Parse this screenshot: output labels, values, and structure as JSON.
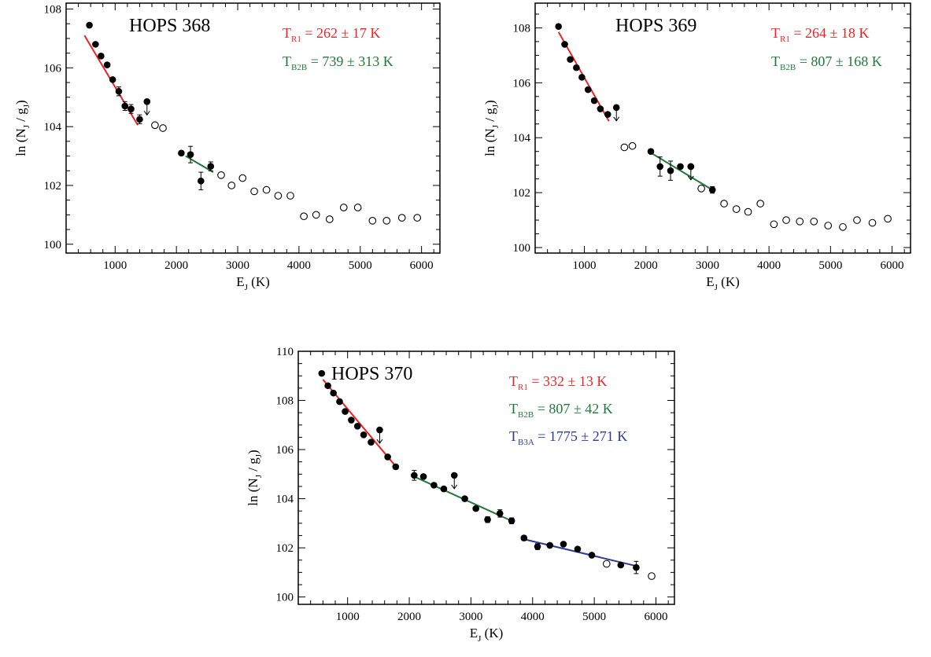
{
  "chart_data": [
    {
      "type": "scatter",
      "title": "HOPS 368",
      "xlabel": "E",
      "xlabel_sub": "J",
      "xlabel_unit": " (K)",
      "ylabel": "ln (N",
      "ylabel_sub1": "J",
      "ylabel_mid": " / g",
      "ylabel_sub2": "J",
      "ylabel_end": ")",
      "xlim": [
        200,
        6300
      ],
      "ylim": [
        99.7,
        108.2
      ],
      "xticks": [
        "1000",
        "2000",
        "3000",
        "4000",
        "5000",
        "6000"
      ],
      "yticks": [
        "100",
        "102",
        "104",
        "106",
        "108"
      ],
      "detections": [
        {
          "x": 580,
          "y": 107.45
        },
        {
          "x": 680,
          "y": 106.8
        },
        {
          "x": 770,
          "y": 106.4
        },
        {
          "x": 870,
          "y": 106.1
        },
        {
          "x": 960,
          "y": 105.6
        },
        {
          "x": 1060,
          "y": 105.2,
          "err": 0.15
        },
        {
          "x": 1160,
          "y": 104.7,
          "err": 0.15
        },
        {
          "x": 1260,
          "y": 104.6,
          "err": 0.15
        },
        {
          "x": 1400,
          "y": 104.25,
          "err": 0.15
        },
        {
          "x": 2080,
          "y": 103.1
        },
        {
          "x": 2230,
          "y": 103.05,
          "err": 0.28
        },
        {
          "x": 2400,
          "y": 102.15,
          "err": 0.3
        },
        {
          "x": 2560,
          "y": 102.65,
          "err": 0.15
        }
      ],
      "upper_limits": [
        {
          "x": 1520,
          "y": 104.85
        }
      ],
      "non_detections": [
        {
          "x": 1650,
          "y": 104.05
        },
        {
          "x": 1780,
          "y": 103.95
        },
        {
          "x": 2730,
          "y": 102.35
        },
        {
          "x": 2900,
          "y": 102.0
        },
        {
          "x": 3080,
          "y": 102.25
        },
        {
          "x": 3270,
          "y": 101.8
        },
        {
          "x": 3470,
          "y": 101.85
        },
        {
          "x": 3660,
          "y": 101.65
        },
        {
          "x": 3860,
          "y": 101.65
        },
        {
          "x": 4080,
          "y": 100.95
        },
        {
          "x": 4280,
          "y": 101.0
        },
        {
          "x": 4500,
          "y": 100.85
        },
        {
          "x": 4730,
          "y": 101.25
        },
        {
          "x": 4960,
          "y": 101.25
        },
        {
          "x": 5200,
          "y": 100.8
        },
        {
          "x": 5430,
          "y": 100.8
        },
        {
          "x": 5680,
          "y": 100.9
        },
        {
          "x": 5930,
          "y": 100.9
        }
      ],
      "fits": [
        {
          "color": "#ee2222",
          "x1": 500,
          "y1": 107.1,
          "x2": 1370,
          "y2": 104.05
        },
        {
          "color": "#1f7a3a",
          "x1": 2150,
          "y1": 103.0,
          "x2": 2600,
          "y2": 102.45
        }
      ],
      "annotations": [
        {
          "label": "T",
          "sub": "R1",
          "value": " = 262 ± 17 K",
          "color": "#ee2222"
        },
        {
          "label": "T",
          "sub": "B2B",
          "value": " = 739 ± 313 K",
          "color": "#1f7a3a"
        }
      ]
    },
    {
      "type": "scatter",
      "title": "HOPS 369",
      "xlabel": "E",
      "xlabel_sub": "J",
      "xlabel_unit": " (K)",
      "ylabel": "ln (N",
      "ylabel_sub1": "J",
      "ylabel_mid": " / g",
      "ylabel_sub2": "J",
      "ylabel_end": ")",
      "xlim": [
        200,
        6300
      ],
      "ylim": [
        99.8,
        108.9
      ],
      "xticks": [
        "1000",
        "2000",
        "3000",
        "4000",
        "5000",
        "6000"
      ],
      "yticks": [
        "100",
        "102",
        "104",
        "106",
        "108"
      ],
      "detections": [
        {
          "x": 580,
          "y": 108.05
        },
        {
          "x": 680,
          "y": 107.4
        },
        {
          "x": 770,
          "y": 106.85
        },
        {
          "x": 870,
          "y": 106.55
        },
        {
          "x": 960,
          "y": 106.2
        },
        {
          "x": 1060,
          "y": 105.75
        },
        {
          "x": 1160,
          "y": 105.35
        },
        {
          "x": 1260,
          "y": 105.05
        },
        {
          "x": 1380,
          "y": 104.85
        },
        {
          "x": 2080,
          "y": 103.5
        },
        {
          "x": 2230,
          "y": 102.95,
          "err": 0.35
        },
        {
          "x": 2400,
          "y": 102.8,
          "err": 0.35
        },
        {
          "x": 2560,
          "y": 102.95
        },
        {
          "x": 2730,
          "y": 102.95
        },
        {
          "x": 3080,
          "y": 102.1,
          "err": 0.12
        }
      ],
      "upper_limits": [
        {
          "x": 1520,
          "y": 105.1
        },
        {
          "x": 2730,
          "y": 102.95
        }
      ],
      "non_detections": [
        {
          "x": 1650,
          "y": 103.65
        },
        {
          "x": 1780,
          "y": 103.7
        },
        {
          "x": 2900,
          "y": 102.15
        },
        {
          "x": 3270,
          "y": 101.6
        },
        {
          "x": 3470,
          "y": 101.4
        },
        {
          "x": 3660,
          "y": 101.3
        },
        {
          "x": 3860,
          "y": 101.6
        },
        {
          "x": 4080,
          "y": 100.85
        },
        {
          "x": 4280,
          "y": 101.0
        },
        {
          "x": 4500,
          "y": 100.95
        },
        {
          "x": 4730,
          "y": 100.95
        },
        {
          "x": 4960,
          "y": 100.8
        },
        {
          "x": 5200,
          "y": 100.75
        },
        {
          "x": 5430,
          "y": 101.0
        },
        {
          "x": 5680,
          "y": 100.9
        },
        {
          "x": 5930,
          "y": 101.05
        }
      ],
      "fits": [
        {
          "color": "#ee2222",
          "x1": 580,
          "y1": 107.85,
          "x2": 1400,
          "y2": 104.6
        },
        {
          "color": "#1f7a3a",
          "x1": 2080,
          "y1": 103.45,
          "x2": 3080,
          "y2": 102.1
        }
      ],
      "annotations": [
        {
          "label": "T",
          "sub": "R1",
          "value": " = 264 ± 18 K",
          "color": "#ee2222"
        },
        {
          "label": "T",
          "sub": "B2B",
          "value": " = 807 ± 168 K",
          "color": "#1f7a3a"
        }
      ]
    },
    {
      "type": "scatter",
      "title": "HOPS 370",
      "xlabel": "E",
      "xlabel_sub": "J",
      "xlabel_unit": " (K)",
      "ylabel": "ln (N",
      "ylabel_sub1": "J",
      "ylabel_mid": " / g",
      "ylabel_sub2": "J",
      "ylabel_end": ")",
      "xlim": [
        200,
        6300
      ],
      "ylim": [
        99.7,
        110.0
      ],
      "xticks": [
        "1000",
        "2000",
        "3000",
        "4000",
        "5000",
        "6000"
      ],
      "yticks": [
        "100",
        "102",
        "104",
        "106",
        "108",
        "110"
      ],
      "detections": [
        {
          "x": 580,
          "y": 109.1
        },
        {
          "x": 680,
          "y": 108.6
        },
        {
          "x": 770,
          "y": 108.3
        },
        {
          "x": 870,
          "y": 107.95
        },
        {
          "x": 960,
          "y": 107.55
        },
        {
          "x": 1060,
          "y": 107.2
        },
        {
          "x": 1160,
          "y": 106.95
        },
        {
          "x": 1260,
          "y": 106.6
        },
        {
          "x": 1380,
          "y": 106.3
        },
        {
          "x": 1650,
          "y": 105.7
        },
        {
          "x": 1780,
          "y": 105.3
        },
        {
          "x": 2080,
          "y": 104.95,
          "err": 0.2
        },
        {
          "x": 2230,
          "y": 104.9
        },
        {
          "x": 2400,
          "y": 104.55
        },
        {
          "x": 2560,
          "y": 104.4
        },
        {
          "x": 2900,
          "y": 104.0
        },
        {
          "x": 3080,
          "y": 103.6
        },
        {
          "x": 3270,
          "y": 103.15,
          "err": 0.12
        },
        {
          "x": 3470,
          "y": 103.4,
          "err": 0.15
        },
        {
          "x": 3660,
          "y": 103.1,
          "err": 0.12
        },
        {
          "x": 3860,
          "y": 102.4,
          "err": 0.1
        },
        {
          "x": 4080,
          "y": 102.05,
          "err": 0.12
        },
        {
          "x": 4280,
          "y": 102.1
        },
        {
          "x": 4500,
          "y": 102.15
        },
        {
          "x": 4730,
          "y": 101.95
        },
        {
          "x": 4960,
          "y": 101.7
        },
        {
          "x": 5430,
          "y": 101.3
        },
        {
          "x": 5680,
          "y": 101.2,
          "err": 0.25
        }
      ],
      "upper_limits": [
        {
          "x": 1520,
          "y": 106.8
        },
        {
          "x": 2730,
          "y": 104.95
        }
      ],
      "non_detections": [
        {
          "x": 5200,
          "y": 101.35
        },
        {
          "x": 5930,
          "y": 100.85
        }
      ],
      "fits": [
        {
          "color": "#ee2222",
          "x1": 600,
          "y1": 108.85,
          "x2": 1820,
          "y2": 105.2
        },
        {
          "color": "#1f7a3a",
          "x1": 2080,
          "y1": 104.9,
          "x2": 3700,
          "y2": 103.05
        },
        {
          "color": "#2b3aa0",
          "x1": 3860,
          "y1": 102.35,
          "x2": 5700,
          "y2": 101.25
        }
      ],
      "annotations": [
        {
          "label": "T",
          "sub": "R1",
          "value": " = 332 ± 13 K",
          "color": "#ee2222"
        },
        {
          "label": "T",
          "sub": "B2B",
          "value": " = 807 ± 42 K",
          "color": "#1f7a3a"
        },
        {
          "label": "T",
          "sub": "B3A",
          "value": " = 1775 ± 271 K",
          "color": "#2b3aa0"
        }
      ]
    }
  ]
}
